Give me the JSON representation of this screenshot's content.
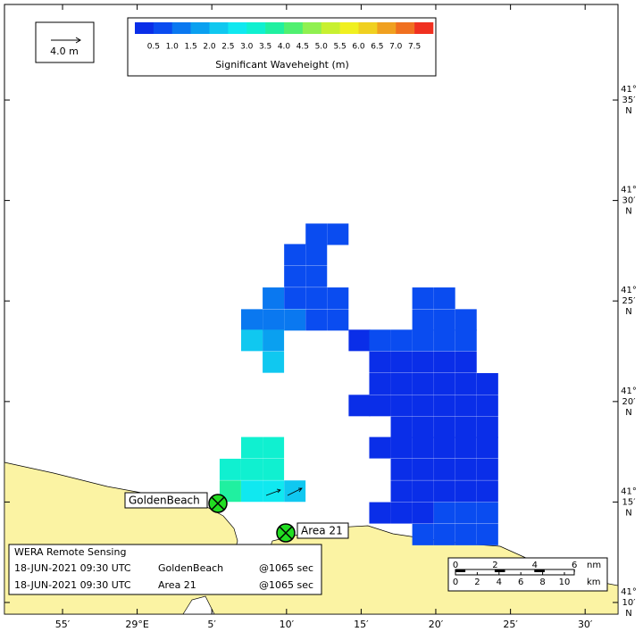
{
  "legend": {
    "arrow_label": "4.0 m"
  },
  "colorbar": {
    "title": "Significant Waveheight (m)",
    "range": [
      0,
      8
    ],
    "colors": [
      "#0a2ee8",
      "#0a4cf0",
      "#0a78f0",
      "#0aa0f0",
      "#10c8f0",
      "#10e8f0",
      "#10f0d0",
      "#20f0a0",
      "#50f070",
      "#90f050",
      "#c8f030",
      "#f0f020",
      "#f0d020",
      "#f0a020",
      "#f07020",
      "#f03020"
    ],
    "ticks": [
      0.5,
      {
        "value": 1,
        "label": "1.0"
      },
      1.5,
      {
        "value": 2,
        "label": "2.0"
      },
      2.5,
      {
        "value": 3,
        "label": "3.0"
      },
      3.5,
      {
        "value": 4,
        "label": "4.0"
      },
      4.5,
      {
        "value": 5,
        "label": "5.0"
      },
      5.5,
      {
        "value": 6,
        "label": "6.0"
      },
      6.5,
      {
        "value": 7,
        "label": "7.0"
      },
      7.5
    ]
  },
  "lon_ticks": [
    {
      "value": 28.9167,
      "label": "55′"
    },
    {
      "value": 29.0,
      "label": "29°E"
    },
    {
      "value": 29.0833,
      "label": "5′"
    },
    {
      "value": 29.1667,
      "label": "10′"
    },
    {
      "value": 29.25,
      "label": "15′"
    },
    {
      "value": 29.3333,
      "label": "20′"
    },
    {
      "value": 29.4167,
      "label": "25′"
    },
    {
      "value": 29.5,
      "label": "30′"
    }
  ],
  "lat_ticks": [
    {
      "value": 41.5833,
      "deg": "41°",
      "min": "35′",
      "hem": "N"
    },
    {
      "value": 41.5,
      "deg": "41°",
      "min": "30′",
      "hem": "N"
    },
    {
      "value": 41.4167,
      "deg": "41°",
      "min": "25′",
      "hem": "N"
    },
    {
      "value": 41.3333,
      "deg": "41°",
      "min": "20′",
      "hem": "N"
    },
    {
      "value": 41.25,
      "deg": "41°",
      "min": "15′",
      "hem": "N"
    },
    {
      "value": 41.1667,
      "deg": "41°",
      "min": "10′",
      "hem": "N"
    }
  ],
  "cells": [
    {
      "lon": 29.2,
      "lat": 41.472,
      "value": 0.9
    },
    {
      "lon": 29.224,
      "lat": 41.472,
      "value": 0.9
    },
    {
      "lon": 29.176,
      "lat": 41.455,
      "value": 0.8
    },
    {
      "lon": 29.2,
      "lat": 41.455,
      "value": 0.8
    },
    {
      "lon": 29.176,
      "lat": 41.437,
      "value": 0.8
    },
    {
      "lon": 29.2,
      "lat": 41.437,
      "value": 0.8
    },
    {
      "lon": 29.152,
      "lat": 41.419,
      "value": 1.3
    },
    {
      "lon": 29.176,
      "lat": 41.419,
      "value": 0.9
    },
    {
      "lon": 29.2,
      "lat": 41.419,
      "value": 0.7
    },
    {
      "lon": 29.224,
      "lat": 41.419,
      "value": 0.7
    },
    {
      "lon": 29.319,
      "lat": 41.419,
      "value": 0.8
    },
    {
      "lon": 29.343,
      "lat": 41.419,
      "value": 0.8
    },
    {
      "lon": 29.128,
      "lat": 41.401,
      "value": 1.4
    },
    {
      "lon": 29.152,
      "lat": 41.401,
      "value": 1.2
    },
    {
      "lon": 29.176,
      "lat": 41.401,
      "value": 1.0
    },
    {
      "lon": 29.2,
      "lat": 41.401,
      "value": 0.8
    },
    {
      "lon": 29.224,
      "lat": 41.401,
      "value": 0.5
    },
    {
      "lon": 29.319,
      "lat": 41.401,
      "value": 0.6
    },
    {
      "lon": 29.343,
      "lat": 41.401,
      "value": 0.6
    },
    {
      "lon": 29.367,
      "lat": 41.401,
      "value": 0.6
    },
    {
      "lon": 29.128,
      "lat": 41.384,
      "value": 2.0
    },
    {
      "lon": 29.152,
      "lat": 41.384,
      "value": 1.6
    },
    {
      "lon": 29.248,
      "lat": 41.384,
      "value": 0.4
    },
    {
      "lon": 29.271,
      "lat": 41.384,
      "value": 0.5
    },
    {
      "lon": 29.295,
      "lat": 41.384,
      "value": 0.5
    },
    {
      "lon": 29.319,
      "lat": 41.384,
      "value": 0.5
    },
    {
      "lon": 29.343,
      "lat": 41.384,
      "value": 0.5
    },
    {
      "lon": 29.367,
      "lat": 41.384,
      "value": 0.5
    },
    {
      "lon": 29.152,
      "lat": 41.366,
      "value": 2.1
    },
    {
      "lon": 29.271,
      "lat": 41.366,
      "value": 0.4
    },
    {
      "lon": 29.295,
      "lat": 41.366,
      "value": 0.4
    },
    {
      "lon": 29.319,
      "lat": 41.366,
      "value": 0.4
    },
    {
      "lon": 29.343,
      "lat": 41.366,
      "value": 0.4
    },
    {
      "lon": 29.367,
      "lat": 41.366,
      "value": 0.4
    },
    {
      "lon": 29.271,
      "lat": 41.348,
      "value": 0.4
    },
    {
      "lon": 29.295,
      "lat": 41.348,
      "value": 0.4
    },
    {
      "lon": 29.319,
      "lat": 41.348,
      "value": 0.4
    },
    {
      "lon": 29.343,
      "lat": 41.348,
      "value": 0.4
    },
    {
      "lon": 29.367,
      "lat": 41.348,
      "value": 0.4
    },
    {
      "lon": 29.391,
      "lat": 41.348,
      "value": 0.4
    },
    {
      "lon": 29.248,
      "lat": 41.33,
      "value": 0.4
    },
    {
      "lon": 29.271,
      "lat": 41.33,
      "value": 0.4
    },
    {
      "lon": 29.295,
      "lat": 41.33,
      "value": 0.4
    },
    {
      "lon": 29.319,
      "lat": 41.33,
      "value": 0.4
    },
    {
      "lon": 29.343,
      "lat": 41.33,
      "value": 0.4
    },
    {
      "lon": 29.367,
      "lat": 41.33,
      "value": 0.4
    },
    {
      "lon": 29.391,
      "lat": 41.33,
      "value": 0.4
    },
    {
      "lon": 29.295,
      "lat": 41.312,
      "value": 0.4
    },
    {
      "lon": 29.319,
      "lat": 41.312,
      "value": 0.4
    },
    {
      "lon": 29.343,
      "lat": 41.312,
      "value": 0.4
    },
    {
      "lon": 29.367,
      "lat": 41.312,
      "value": 0.4
    },
    {
      "lon": 29.391,
      "lat": 41.312,
      "value": 0.4
    },
    {
      "lon": 29.128,
      "lat": 41.295,
      "value": 3.3
    },
    {
      "lon": 29.152,
      "lat": 41.295,
      "value": 3.3
    },
    {
      "lon": 29.271,
      "lat": 41.295,
      "value": 0.4
    },
    {
      "lon": 29.295,
      "lat": 41.295,
      "value": 0.4
    },
    {
      "lon": 29.319,
      "lat": 41.295,
      "value": 0.4
    },
    {
      "lon": 29.343,
      "lat": 41.295,
      "value": 0.4
    },
    {
      "lon": 29.367,
      "lat": 41.295,
      "value": 0.4
    },
    {
      "lon": 29.391,
      "lat": 41.295,
      "value": 0.4
    },
    {
      "lon": 29.104,
      "lat": 41.277,
      "value": 3.0
    },
    {
      "lon": 29.128,
      "lat": 41.277,
      "value": 3.4
    },
    {
      "lon": 29.152,
      "lat": 41.277,
      "value": 3.3
    },
    {
      "lon": 29.295,
      "lat": 41.277,
      "value": 0.4
    },
    {
      "lon": 29.319,
      "lat": 41.277,
      "value": 0.4
    },
    {
      "lon": 29.343,
      "lat": 41.277,
      "value": 0.4
    },
    {
      "lon": 29.367,
      "lat": 41.277,
      "value": 0.4
    },
    {
      "lon": 29.391,
      "lat": 41.277,
      "value": 0.4
    },
    {
      "lon": 29.104,
      "lat": 41.259,
      "value": 3.7
    },
    {
      "lon": 29.128,
      "lat": 41.259,
      "value": 2.9
    },
    {
      "lon": 29.152,
      "lat": 41.259,
      "value": 2.5
    },
    {
      "lon": 29.176,
      "lat": 41.259,
      "value": 2.4
    },
    {
      "lon": 29.295,
      "lat": 41.259,
      "value": 0.4
    },
    {
      "lon": 29.319,
      "lat": 41.259,
      "value": 0.4
    },
    {
      "lon": 29.343,
      "lat": 41.259,
      "value": 0.4
    },
    {
      "lon": 29.367,
      "lat": 41.259,
      "value": 0.4
    },
    {
      "lon": 29.391,
      "lat": 41.259,
      "value": 0.4
    },
    {
      "lon": 29.271,
      "lat": 41.241,
      "value": 0.4
    },
    {
      "lon": 29.295,
      "lat": 41.241,
      "value": 0.4
    },
    {
      "lon": 29.319,
      "lat": 41.241,
      "value": 0.4
    },
    {
      "lon": 29.343,
      "lat": 41.241,
      "value": 0.6
    },
    {
      "lon": 29.367,
      "lat": 41.241,
      "value": 0.6
    },
    {
      "lon": 29.391,
      "lat": 41.241,
      "value": 0.6
    },
    {
      "lon": 29.319,
      "lat": 41.223,
      "value": 0.5
    },
    {
      "lon": 29.343,
      "lat": 41.223,
      "value": 0.5
    },
    {
      "lon": 29.367,
      "lat": 41.223,
      "value": 0.5
    },
    {
      "lon": 29.391,
      "lat": 41.223,
      "value": 0.5
    }
  ],
  "stations": [
    {
      "name": "GoldenBeach"
    },
    {
      "name": "Area 21"
    }
  ],
  "info": {
    "title": "WERA Remote Sensing",
    "rows": [
      [
        "18-JUN-2021 09:30 UTC",
        "GoldenBeach",
        "@1065 sec"
      ],
      [
        "18-JUN-2021 09:30 UTC",
        "Area 21",
        "@1065 sec"
      ]
    ]
  },
  "scale": {
    "nm_ticks": [
      0,
      2,
      4,
      6
    ],
    "nm_unit": "nm",
    "km_ticks": [
      0,
      2,
      4,
      6,
      8,
      10
    ],
    "km_unit": "km"
  }
}
